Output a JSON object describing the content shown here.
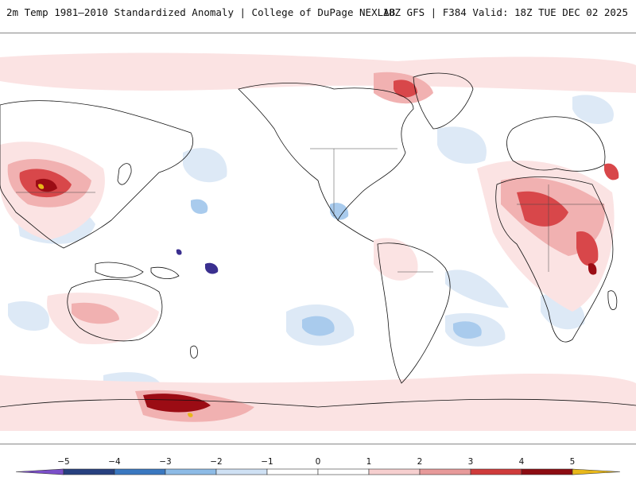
{
  "header": {
    "left_title": "2m Temp 1981–2010 Standardized Anomaly | College of DuPage NEXLAB",
    "right_title": "18Z GFS | F384 Valid: 18Z TUE DEC 02 2025"
  },
  "colorbar": {
    "ticks": [
      "−5",
      "−4",
      "−3",
      "−2",
      "−1",
      "0",
      "1",
      "2",
      "3",
      "4",
      "5"
    ],
    "colors": [
      "#7b4fc9",
      "#27407f",
      "#3a78c0",
      "#8dbbe6",
      "#cfe1f4",
      "#ffffff",
      "#ffffff",
      "#f6cfcf",
      "#e79a9a",
      "#cf3b3b",
      "#8c0c12",
      "#e8b81a"
    ]
  },
  "map": {
    "background": "#ffffff",
    "coastline_color": "#111111",
    "warm_colors": [
      "#fbe3e3",
      "#f1b1b1",
      "#d8474a",
      "#9b0c14"
    ],
    "cold_colors": [
      "#dde9f6",
      "#a9cbed",
      "#4b86cf",
      "#3a2f8f"
    ]
  }
}
